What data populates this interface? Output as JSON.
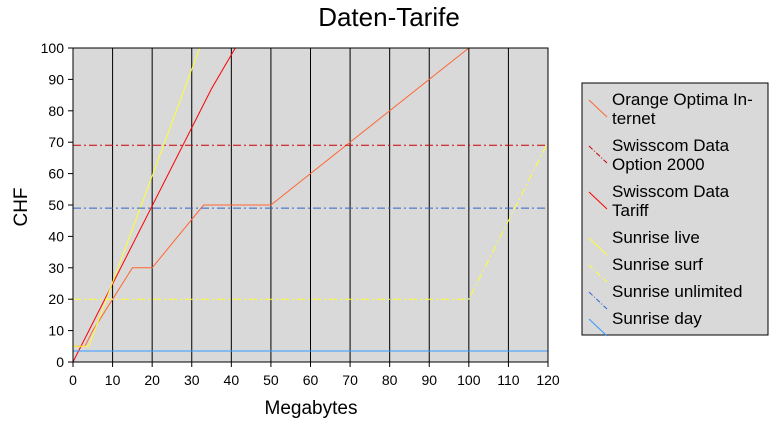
{
  "chart_data": {
    "type": "line",
    "title": "Daten-Tarife",
    "xlabel": "Megabytes",
    "ylabel": "CHF",
    "xlim": [
      0,
      120
    ],
    "ylim": [
      0,
      100
    ],
    "xticks": [
      0,
      10,
      20,
      30,
      40,
      50,
      60,
      70,
      80,
      90,
      100,
      110,
      120
    ],
    "yticks": [
      0,
      10,
      20,
      30,
      40,
      50,
      60,
      70,
      80,
      90,
      100
    ],
    "grid": "vertical",
    "legend_position": "right",
    "background_color": "#d9d9d9",
    "series": [
      {
        "name_lines": [
          "Orange Optima In-",
          "ternet"
        ],
        "color": "#ff6633",
        "dash": "solid",
        "x": [
          0,
          3,
          5,
          10,
          15,
          20,
          33,
          50,
          100
        ],
        "y": [
          5,
          5,
          10,
          20,
          30,
          30,
          50,
          50,
          100
        ]
      },
      {
        "name_lines": [
          "Swisscom Data",
          "Option 2000"
        ],
        "color": "#cc0000",
        "dash": "dashdot",
        "x": [
          0,
          120
        ],
        "y": [
          69,
          69
        ]
      },
      {
        "name_lines": [
          "Swisscom Data",
          "Tariff"
        ],
        "color": "#ff0000",
        "dash": "solid",
        "x": [
          0,
          35,
          41
        ],
        "y": [
          0,
          87,
          100
        ]
      },
      {
        "name_lines": [
          "Sunrise live"
        ],
        "color": "#ffff33",
        "dash": "solid",
        "x": [
          0,
          4,
          32
        ],
        "y": [
          5,
          5,
          100
        ]
      },
      {
        "name_lines": [
          "Sunrise surf"
        ],
        "color": "#ffff33",
        "dash": "dashdot",
        "x": [
          0,
          100,
          120
        ],
        "y": [
          20,
          20,
          70
        ]
      },
      {
        "name_lines": [
          "Sunrise unlimited"
        ],
        "color": "#3366cc",
        "dash": "dashdot",
        "x": [
          0,
          120
        ],
        "y": [
          49,
          49
        ]
      },
      {
        "name_lines": [
          "Sunrise day"
        ],
        "color": "#3399ff",
        "dash": "solid",
        "x": [
          0,
          120
        ],
        "y": [
          3.5,
          3.5
        ]
      }
    ]
  }
}
